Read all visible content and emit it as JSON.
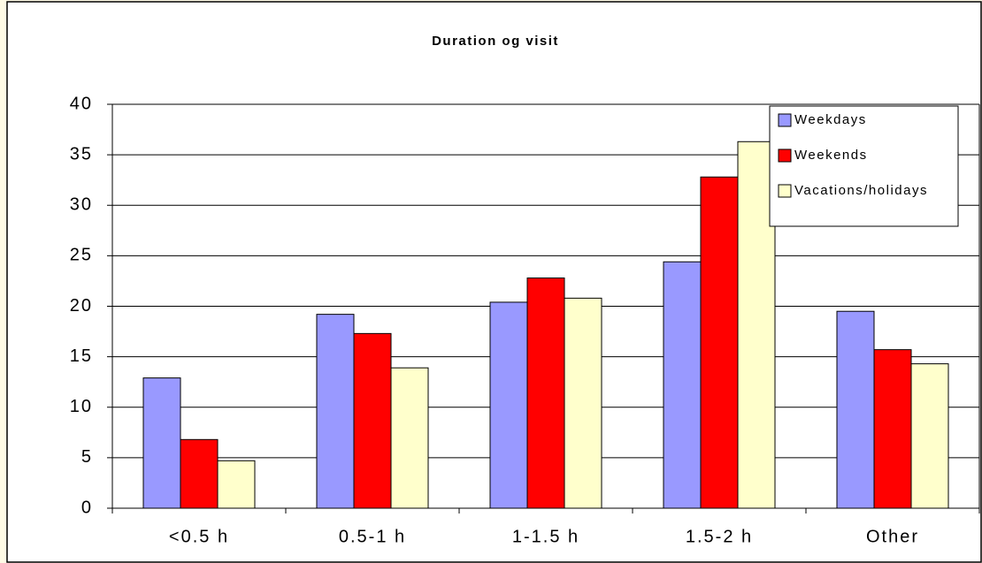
{
  "chart_data": {
    "type": "bar",
    "title": "Duration og visit",
    "categories": [
      "<0.5 h",
      "0.5-1 h",
      "1-1.5 h",
      "1.5-2 h",
      "Other"
    ],
    "series": [
      {
        "name": "Weekdays",
        "color": "#9999ff",
        "values": [
          12.9,
          19.2,
          20.4,
          24.4,
          19.5
        ]
      },
      {
        "name": "Weekends",
        "color": "#ff0000",
        "values": [
          6.8,
          17.3,
          22.8,
          32.8,
          15.7
        ]
      },
      {
        "name": "Vacations/holidays",
        "color": "#ffffcc",
        "values": [
          4.7,
          13.9,
          20.8,
          36.3,
          14.3
        ]
      }
    ],
    "ylim": [
      0,
      40
    ],
    "yticks": [
      0,
      5,
      10,
      15,
      20,
      25,
      30,
      35,
      40
    ],
    "grid": true,
    "legend": "upper right"
  }
}
